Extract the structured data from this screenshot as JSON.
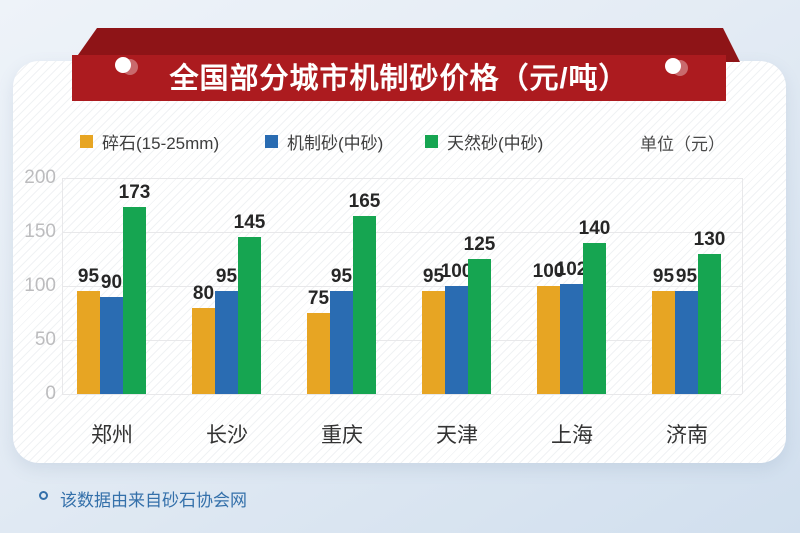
{
  "title": "全国部分城市机制砂价格（元/吨）",
  "unit_label": "单位（元）",
  "footer": {
    "note": "该数据由来自砂石协会网"
  },
  "colors": {
    "ribbon_front": "#AC1B1F",
    "ribbon_back": "#8E1417",
    "footer_blue": "#3470AA",
    "grid_line": "#E8E8EA",
    "tick_text": "#BCBCBE",
    "value_text": "#262626",
    "category_text": "#333333"
  },
  "chart_data": {
    "type": "bar",
    "title": "全国部分城市机制砂价格（元/吨）",
    "unit": "单位（元）",
    "categories": [
      "郑州",
      "长沙",
      "重庆",
      "天津",
      "上海",
      "济南"
    ],
    "series": [
      {
        "name": "碎石(15-25mm)",
        "color": "#E7A523",
        "values": [
          95,
          80,
          75,
          95,
          100,
          95
        ]
      },
      {
        "name": "机制砂(中砂)",
        "color": "#2A6CB2",
        "values": [
          90,
          95,
          95,
          100,
          102,
          95
        ]
      },
      {
        "name": "天然砂(中砂)",
        "color": "#16A551",
        "values": [
          173,
          145,
          165,
          125,
          140,
          130
        ]
      }
    ],
    "xlabel": "",
    "ylabel": "",
    "ylim": [
      0,
      200
    ],
    "yticks": [
      0,
      50,
      100,
      150,
      200
    ],
    "grid": true,
    "legend_position": "top",
    "value_labels": true,
    "source_note": "该数据由来自砂石协会网"
  }
}
